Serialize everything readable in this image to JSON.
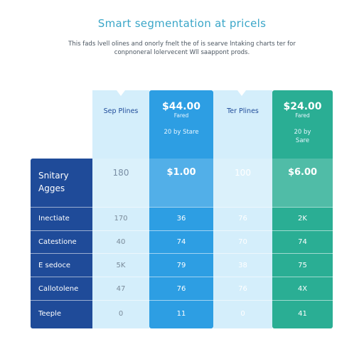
{
  "title": "Smart segmentation at pricels",
  "subtitle": "This fads lvell olines and onorly fnelt the of is searve lntaking charts ter for conpnoneral lolervecent Wll saappont prods.",
  "columns": [
    {
      "name": "Sep Plines",
      "price": "",
      "note": "",
      "note2": ""
    },
    {
      "name": "",
      "price": "$44.00",
      "note": "Fared",
      "note2": "20 by Stare"
    },
    {
      "name": "Ter Plines",
      "price": "",
      "note": "",
      "note2": ""
    },
    {
      "name": "",
      "price": "$24.00",
      "note": "Fared",
      "note2": "20 by Sare"
    }
  ],
  "first_row": {
    "label": "Snitary Agges",
    "values": [
      "180",
      "$1.00",
      "100",
      "$6.00"
    ]
  },
  "rows": [
    {
      "label": "Inectiate",
      "values": [
        "170",
        "36",
        "76",
        "2K"
      ]
    },
    {
      "label": "Catestione",
      "values": [
        "40",
        "74",
        "70",
        "74"
      ]
    },
    {
      "label": "E sedoce",
      "values": [
        "5K",
        "79",
        "38",
        "75"
      ]
    },
    {
      "label": "Callotolene",
      "values": [
        "47",
        "76",
        "76",
        "4X"
      ]
    },
    {
      "label": "Teeple",
      "values": [
        "0",
        "11",
        "0",
        "41"
      ]
    }
  ]
}
